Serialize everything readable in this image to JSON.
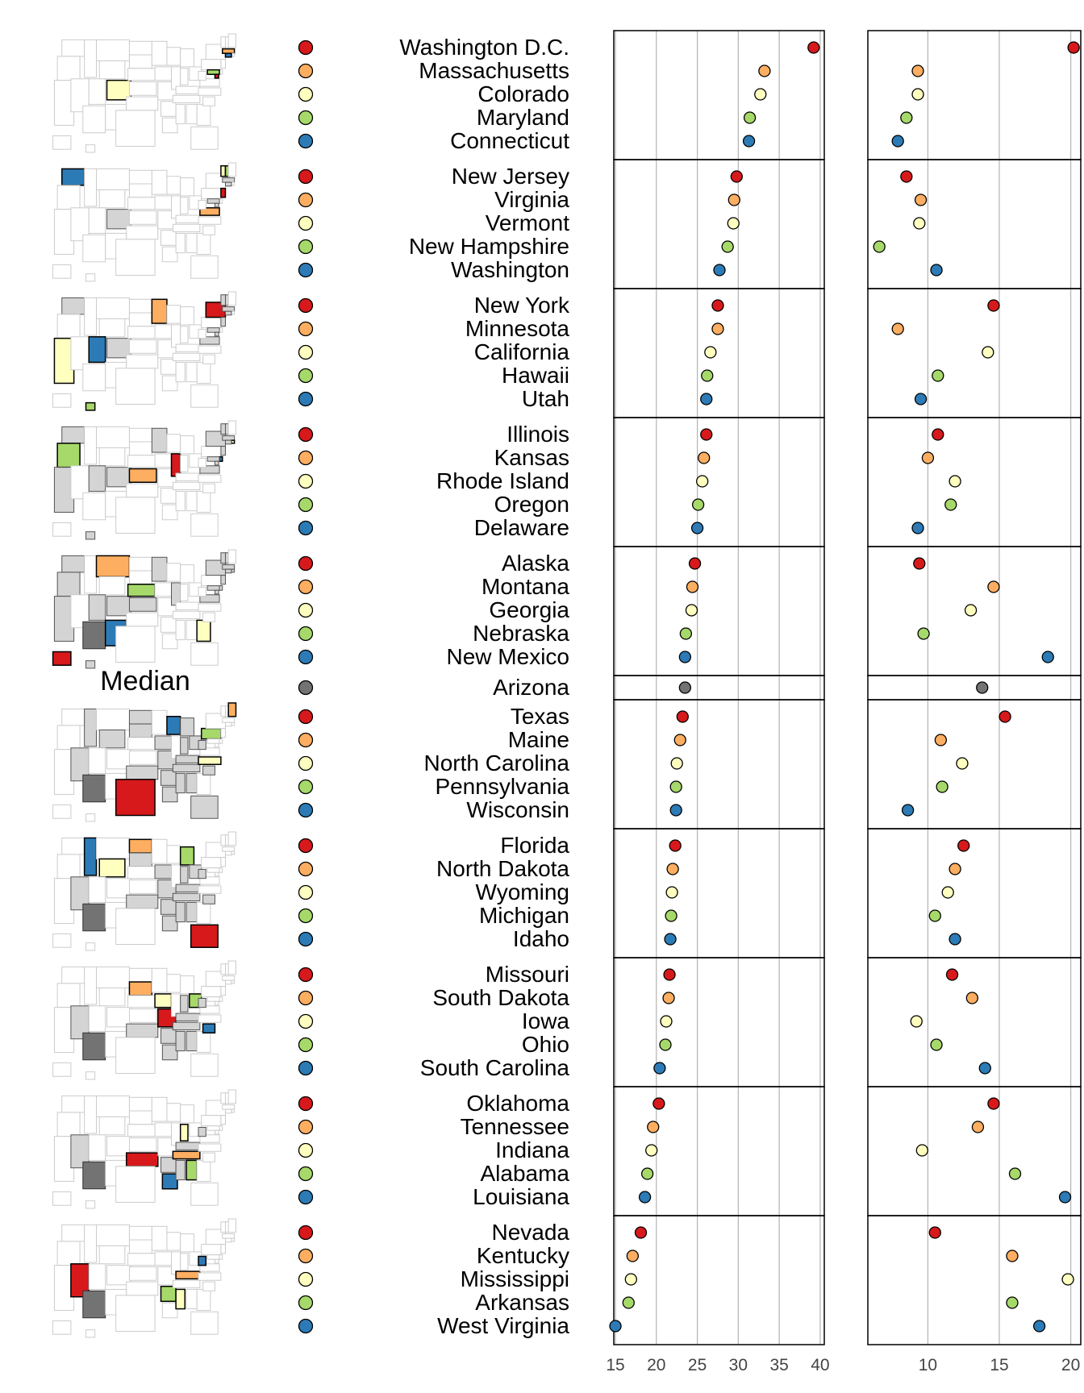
{
  "chart_data": {
    "type": "scatter",
    "chart_kind": "linked micromap dot plot",
    "median_label": "Median",
    "group_colors": [
      "#d7191c",
      "#fdae61",
      "#ffffbf",
      "#a6d96a",
      "#2c7bb6"
    ],
    "median_color": "#737373",
    "states": [
      {
        "name": "Washington D.C.",
        "group": 1,
        "pos": 1,
        "v1": 39.2,
        "v2": 20.2
      },
      {
        "name": "Massachusetts",
        "group": 1,
        "pos": 2,
        "v1": 33.2,
        "v2": 9.3
      },
      {
        "name": "Colorado",
        "group": 1,
        "pos": 3,
        "v1": 32.7,
        "v2": 9.3
      },
      {
        "name": "Maryland",
        "group": 1,
        "pos": 4,
        "v1": 31.4,
        "v2": 8.5
      },
      {
        "name": "Connecticut",
        "group": 1,
        "pos": 5,
        "v1": 31.3,
        "v2": 7.9
      },
      {
        "name": "New Jersey",
        "group": 2,
        "pos": 1,
        "v1": 29.8,
        "v2": 8.5
      },
      {
        "name": "Virginia",
        "group": 2,
        "pos": 2,
        "v1": 29.5,
        "v2": 9.5
      },
      {
        "name": "Vermont",
        "group": 2,
        "pos": 3,
        "v1": 29.4,
        "v2": 9.4
      },
      {
        "name": "New Hampshire",
        "group": 2,
        "pos": 4,
        "v1": 28.7,
        "v2": 6.6
      },
      {
        "name": "Washington",
        "group": 2,
        "pos": 5,
        "v1": 27.7,
        "v2": 10.6
      },
      {
        "name": "New York",
        "group": 3,
        "pos": 1,
        "v1": 27.5,
        "v2": 14.6
      },
      {
        "name": "Minnesota",
        "group": 3,
        "pos": 2,
        "v1": 27.5,
        "v2": 7.9
      },
      {
        "name": "California",
        "group": 3,
        "pos": 3,
        "v1": 26.6,
        "v2": 14.2
      },
      {
        "name": "Hawaii",
        "group": 3,
        "pos": 4,
        "v1": 26.2,
        "v2": 10.7
      },
      {
        "name": "Utah",
        "group": 3,
        "pos": 5,
        "v1": 26.1,
        "v2": 9.5
      },
      {
        "name": "Illinois",
        "group": 4,
        "pos": 1,
        "v1": 26.1,
        "v2": 10.7
      },
      {
        "name": "Kansas",
        "group": 4,
        "pos": 2,
        "v1": 25.8,
        "v2": 10.0
      },
      {
        "name": "Rhode Island",
        "group": 4,
        "pos": 3,
        "v1": 25.6,
        "v2": 11.9
      },
      {
        "name": "Oregon",
        "group": 4,
        "pos": 4,
        "v1": 25.1,
        "v2": 11.6
      },
      {
        "name": "Delaware",
        "group": 4,
        "pos": 5,
        "v1": 25.0,
        "v2": 9.3
      },
      {
        "name": "Alaska",
        "group": 5,
        "pos": 1,
        "v1": 24.7,
        "v2": 9.4
      },
      {
        "name": "Montana",
        "group": 5,
        "pos": 2,
        "v1": 24.4,
        "v2": 14.6
      },
      {
        "name": "Georgia",
        "group": 5,
        "pos": 3,
        "v1": 24.3,
        "v2": 13.0
      },
      {
        "name": "Nebraska",
        "group": 5,
        "pos": 4,
        "v1": 23.6,
        "v2": 9.7
      },
      {
        "name": "New Mexico",
        "group": 5,
        "pos": 5,
        "v1": 23.5,
        "v2": 18.4
      },
      {
        "name": "Arizona",
        "group": 0,
        "pos": 0,
        "v1": 23.5,
        "v2": 13.8
      },
      {
        "name": "Texas",
        "group": 7,
        "pos": 1,
        "v1": 23.2,
        "v2": 15.4
      },
      {
        "name": "Maine",
        "group": 7,
        "pos": 2,
        "v1": 22.9,
        "v2": 10.9
      },
      {
        "name": "North Carolina",
        "group": 7,
        "pos": 3,
        "v1": 22.5,
        "v2": 12.4
      },
      {
        "name": "Pennsylvania",
        "group": 7,
        "pos": 4,
        "v1": 22.4,
        "v2": 11.0
      },
      {
        "name": "Wisconsin",
        "group": 7,
        "pos": 5,
        "v1": 22.4,
        "v2": 8.6
      },
      {
        "name": "Florida",
        "group": 8,
        "pos": 1,
        "v1": 22.3,
        "v2": 12.5
      },
      {
        "name": "North Dakota",
        "group": 8,
        "pos": 2,
        "v1": 22.0,
        "v2": 11.9
      },
      {
        "name": "Wyoming",
        "group": 8,
        "pos": 3,
        "v1": 21.9,
        "v2": 11.4
      },
      {
        "name": "Michigan",
        "group": 8,
        "pos": 4,
        "v1": 21.8,
        "v2": 10.5
      },
      {
        "name": "Idaho",
        "group": 8,
        "pos": 5,
        "v1": 21.7,
        "v2": 11.9
      },
      {
        "name": "Missouri",
        "group": 9,
        "pos": 1,
        "v1": 21.6,
        "v2": 11.7
      },
      {
        "name": "South Dakota",
        "group": 9,
        "pos": 2,
        "v1": 21.5,
        "v2": 13.1
      },
      {
        "name": "Iowa",
        "group": 9,
        "pos": 3,
        "v1": 21.2,
        "v2": 9.2
      },
      {
        "name": "Ohio",
        "group": 9,
        "pos": 4,
        "v1": 21.1,
        "v2": 10.6
      },
      {
        "name": "South Carolina",
        "group": 9,
        "pos": 5,
        "v1": 20.4,
        "v2": 14.0
      },
      {
        "name": "Oklahoma",
        "group": 10,
        "pos": 1,
        "v1": 20.3,
        "v2": 14.6
      },
      {
        "name": "Tennessee",
        "group": 10,
        "pos": 2,
        "v1": 19.6,
        "v2": 13.5
      },
      {
        "name": "Indiana",
        "group": 10,
        "pos": 3,
        "v1": 19.4,
        "v2": 9.6
      },
      {
        "name": "Alabama",
        "group": 10,
        "pos": 4,
        "v1": 18.9,
        "v2": 16.1
      },
      {
        "name": "Louisiana",
        "group": 10,
        "pos": 5,
        "v1": 18.6,
        "v2": 19.6
      },
      {
        "name": "Nevada",
        "group": 11,
        "pos": 1,
        "v1": 18.1,
        "v2": 10.5
      },
      {
        "name": "Kentucky",
        "group": 11,
        "pos": 2,
        "v1": 17.1,
        "v2": 15.9
      },
      {
        "name": "Mississippi",
        "group": 11,
        "pos": 3,
        "v1": 16.9,
        "v2": 19.8
      },
      {
        "name": "Arkansas",
        "group": 11,
        "pos": 4,
        "v1": 16.6,
        "v2": 15.9
      },
      {
        "name": "West Virginia",
        "group": 11,
        "pos": 5,
        "v1": 15.0,
        "v2": 17.8
      }
    ],
    "panel1": {
      "xlim": [
        14.8,
        40.5
      ],
      "ticks": [
        15,
        20,
        25,
        30,
        35,
        40
      ],
      "grid": true
    },
    "panel2": {
      "xlim": [
        5.8,
        20.7
      ],
      "ticks": [
        10,
        15,
        20
      ],
      "grid": true
    }
  }
}
